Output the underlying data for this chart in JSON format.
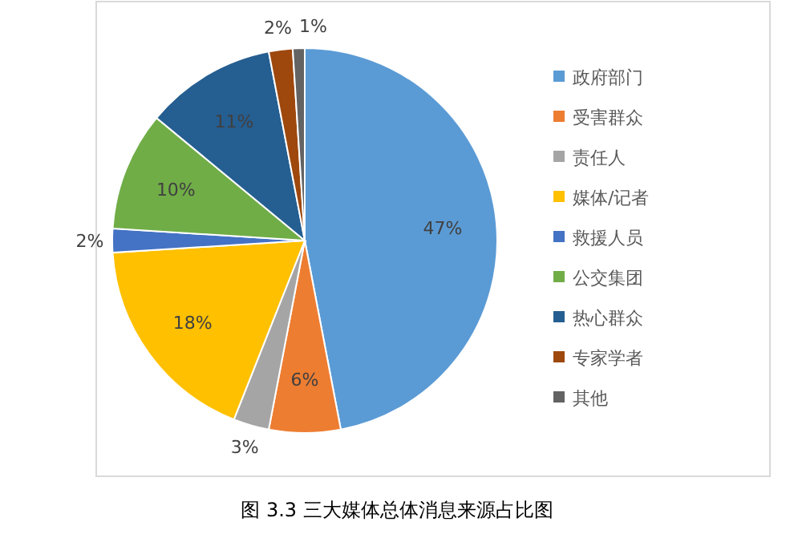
{
  "chart_data": {
    "type": "pie",
    "title": "图 3.3 三大媒体总体消息来源占比图",
    "categories": [
      "政府部门",
      "受害群众",
      "责任人",
      "媒体/记者",
      "救援人员",
      "公交集团",
      "热心群众",
      "专家学者",
      "其他"
    ],
    "values": [
      47,
      6,
      3,
      18,
      2,
      10,
      11,
      2,
      1
    ],
    "colors": [
      "#5b9bd5",
      "#ed7d31",
      "#a5a5a5",
      "#ffc000",
      "#4472c4",
      "#70ad47",
      "#255e91",
      "#9e480e",
      "#636363"
    ],
    "value_labels": [
      "47%",
      "6%",
      "3%",
      "18%",
      "2%",
      "10%",
      "11%",
      "2%",
      "1%"
    ],
    "legend": "right"
  }
}
